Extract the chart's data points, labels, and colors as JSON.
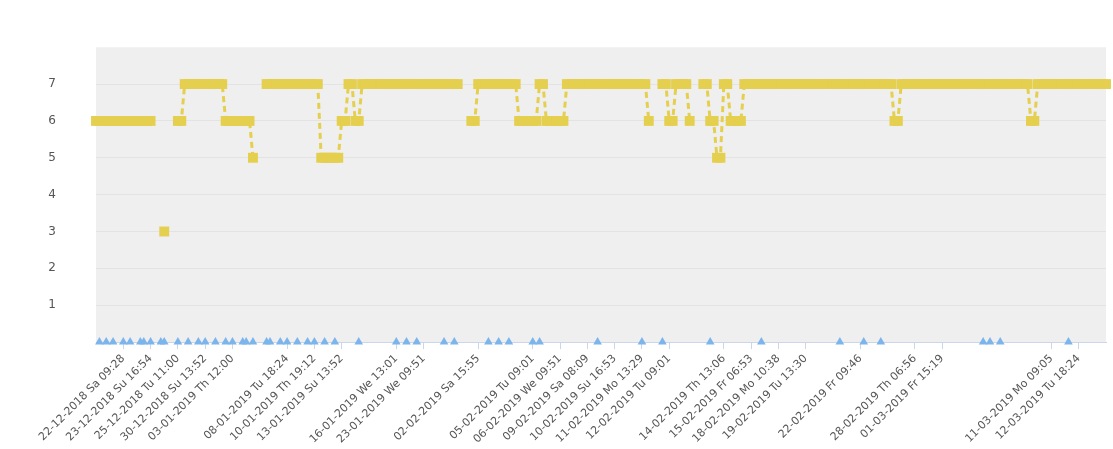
{
  "chart_data": {
    "type": "line",
    "ylim": [
      0,
      8
    ],
    "yticks": [
      1,
      2,
      3,
      4,
      5,
      6,
      7
    ],
    "grid": "y",
    "legend": false,
    "categories": [
      null,
      null,
      null,
      null,
      null,
      null,
      null,
      null,
      "22-12-2018 Sa 09:28",
      null,
      null,
      null,
      null,
      null,
      null,
      null,
      "23-12-2018 Su 16:54",
      null,
      null,
      null,
      null,
      null,
      null,
      null,
      "25-12-2018 Tu 11:00",
      null,
      null,
      null,
      null,
      null,
      null,
      null,
      "30-12-2018 Su 13:52",
      null,
      null,
      null,
      null,
      null,
      null,
      null,
      "03-01-2019 Th 12:00",
      null,
      null,
      null,
      null,
      null,
      null,
      null,
      null,
      null,
      null,
      null,
      null,
      null,
      null,
      null,
      "08-01-2019 Tu 18:24",
      null,
      null,
      null,
      null,
      null,
      null,
      null,
      "10-01-2019 Th 19:12",
      null,
      null,
      null,
      null,
      null,
      null,
      null,
      "13-01-2019 Su 13:52",
      null,
      null,
      null,
      null,
      null,
      null,
      null,
      null,
      null,
      null,
      null,
      null,
      null,
      null,
      null,
      "16-01-2019 We 13:01",
      null,
      null,
      null,
      null,
      null,
      null,
      null,
      "23-01-2019 We 09:51",
      null,
      null,
      null,
      null,
      null,
      null,
      null,
      null,
      null,
      null,
      null,
      null,
      null,
      null,
      null,
      "02-02-2019 Sa 15:55",
      null,
      null,
      null,
      null,
      null,
      null,
      null,
      null,
      null,
      null,
      null,
      null,
      null,
      null,
      null,
      "05-02-2019 Tu 09:01",
      null,
      null,
      null,
      null,
      null,
      null,
      null,
      "06-02-2019 We 09:51",
      null,
      null,
      null,
      null,
      null,
      null,
      null,
      "09-02-2019 Sa 08:09",
      null,
      null,
      null,
      null,
      null,
      null,
      null,
      "10-02-2019 Su 16:53",
      null,
      null,
      null,
      null,
      null,
      null,
      null,
      "11-02-2019 Mo 13:29",
      null,
      null,
      null,
      null,
      null,
      null,
      null,
      "12-02-2019 Tu 09:01",
      null,
      null,
      null,
      null,
      null,
      null,
      null,
      null,
      null,
      null,
      null,
      null,
      null,
      null,
      null,
      "14-02-2019 Th 13:06",
      null,
      null,
      null,
      null,
      null,
      null,
      null,
      "15-02-2019 Fr 06:53",
      null,
      null,
      null,
      null,
      null,
      null,
      null,
      "18-02-2019 Mo 10:38",
      null,
      null,
      null,
      null,
      null,
      null,
      null,
      "19-02-2019 Tu 13:30",
      null,
      null,
      null,
      null,
      null,
      null,
      null,
      null,
      null,
      null,
      null,
      null,
      null,
      null,
      null,
      "22-02-2019 Fr 09:46",
      null,
      null,
      null,
      null,
      null,
      null,
      null,
      null,
      null,
      null,
      null,
      null,
      null,
      null,
      null,
      "28-02-2019 Th 06:56",
      null,
      null,
      null,
      null,
      null,
      null,
      null,
      "01-03-2019 Fr 15:19",
      null,
      null,
      null,
      null,
      null,
      null,
      null,
      null,
      null,
      null,
      null,
      null,
      null,
      null,
      null,
      null,
      null,
      null,
      null,
      null,
      null,
      null,
      null,
      null,
      null,
      null,
      null,
      null,
      null,
      null,
      null,
      "11-03-2019 Mo 09:05",
      null,
      null,
      null,
      null,
      null,
      null,
      null,
      "12-03-2019 Tu 18:24",
      null,
      null,
      null,
      null,
      null,
      null,
      null,
      null
    ],
    "series": [
      {
        "type": "line",
        "color": "#e5cf4f",
        "marker": "square",
        "line_style": "dashed",
        "values": [
          6,
          6,
          6,
          6,
          6,
          6,
          6,
          6,
          6,
          6,
          6,
          6,
          6,
          6,
          6,
          6,
          6,
          null,
          null,
          null,
          3,
          null,
          null,
          null,
          6,
          6,
          7,
          7,
          7,
          7,
          7,
          7,
          7,
          7,
          7,
          7,
          7,
          7,
          6,
          6,
          6,
          6,
          6,
          6,
          6,
          6,
          5,
          null,
          null,
          null,
          7,
          7,
          7,
          7,
          7,
          7,
          7,
          7,
          7,
          7,
          7,
          7,
          7,
          7,
          7,
          7,
          5,
          5,
          5,
          5,
          5,
          5,
          6,
          6,
          7,
          7,
          6,
          6,
          7,
          7,
          7,
          7,
          7,
          7,
          7,
          7,
          7,
          7,
          7,
          7,
          7,
          7,
          7,
          7,
          7,
          7,
          7,
          7,
          7,
          7,
          7,
          7,
          7,
          7,
          7,
          7,
          7,
          null,
          null,
          null,
          6,
          6,
          7,
          7,
          7,
          7,
          7,
          7,
          7,
          7,
          7,
          7,
          7,
          7,
          6,
          6,
          6,
          6,
          6,
          6,
          7,
          7,
          6,
          6,
          6,
          6,
          6,
          6,
          7,
          7,
          7,
          7,
          7,
          7,
          7,
          7,
          7,
          7,
          7,
          7,
          7,
          7,
          7,
          7,
          7,
          7,
          7,
          7,
          7,
          7,
          7,
          7,
          6,
          null,
          null,
          null,
          7,
          7,
          6,
          6,
          7,
          7,
          7,
          7,
          6,
          null,
          null,
          null,
          7,
          7,
          6,
          6,
          5,
          5,
          7,
          7,
          6,
          6,
          6,
          6,
          7,
          7,
          7,
          7,
          7,
          7,
          7,
          7,
          7,
          7,
          7,
          7,
          7,
          7,
          7,
          7,
          7,
          7,
          7,
          7,
          7,
          7,
          7,
          7,
          7,
          7,
          7,
          7,
          7,
          7,
          7,
          7,
          7,
          7,
          7,
          7,
          7,
          7,
          7,
          7,
          7,
          7,
          7,
          7,
          6,
          6,
          7,
          7,
          7,
          7,
          7,
          7,
          7,
          7,
          7,
          7,
          7,
          7,
          7,
          7,
          7,
          7,
          7,
          7,
          7,
          7,
          7,
          7,
          7,
          7,
          7,
          7,
          7,
          7,
          7,
          7,
          7,
          7,
          7,
          7,
          7,
          7,
          7,
          7,
          6,
          6,
          7,
          7,
          7,
          7,
          7,
          7,
          7,
          7,
          7,
          7,
          7,
          7,
          7,
          7,
          7,
          7,
          7,
          7,
          7,
          7,
          7
        ]
      },
      {
        "type": "scatter",
        "color": "#7cb5ec",
        "marker": "triangle",
        "values": [
          null,
          0,
          null,
          0,
          null,
          0,
          null,
          null,
          0,
          null,
          0,
          null,
          null,
          0,
          0,
          null,
          0,
          null,
          null,
          0,
          0,
          null,
          null,
          null,
          0,
          null,
          null,
          0,
          null,
          null,
          0,
          null,
          0,
          null,
          null,
          0,
          null,
          null,
          0,
          null,
          0,
          null,
          null,
          0,
          0,
          null,
          0,
          null,
          null,
          null,
          0,
          0,
          null,
          null,
          0,
          null,
          0,
          null,
          null,
          0,
          null,
          null,
          0,
          null,
          0,
          null,
          null,
          0,
          null,
          null,
          0,
          null,
          null,
          null,
          null,
          null,
          null,
          0,
          null,
          null,
          null,
          null,
          null,
          null,
          null,
          null,
          null,
          null,
          0,
          null,
          null,
          0,
          null,
          null,
          0,
          null,
          null,
          null,
          null,
          null,
          null,
          null,
          0,
          null,
          null,
          0,
          null,
          null,
          null,
          null,
          null,
          null,
          null,
          null,
          null,
          0,
          null,
          null,
          0,
          null,
          null,
          0,
          null,
          null,
          null,
          null,
          null,
          null,
          0,
          null,
          0,
          null,
          null,
          null,
          null,
          null,
          null,
          null,
          null,
          null,
          null,
          null,
          null,
          null,
          null,
          null,
          null,
          0,
          null,
          null,
          null,
          null,
          null,
          null,
          null,
          null,
          null,
          null,
          null,
          null,
          0,
          null,
          null,
          null,
          null,
          null,
          0,
          null,
          null,
          null,
          null,
          null,
          null,
          null,
          null,
          null,
          null,
          null,
          null,
          null,
          0,
          null,
          null,
          null,
          null,
          null,
          null,
          null,
          null,
          null,
          null,
          null,
          null,
          null,
          null,
          0,
          null,
          null,
          null,
          null,
          null,
          null,
          null,
          null,
          null,
          null,
          null,
          null,
          null,
          null,
          null,
          null,
          null,
          null,
          null,
          null,
          null,
          null,
          0,
          null,
          null,
          null,
          null,
          null,
          null,
          0,
          null,
          null,
          null,
          null,
          0,
          null,
          null,
          null,
          null,
          null,
          null,
          null,
          null,
          null,
          null,
          null,
          null,
          null,
          null,
          null,
          null,
          null,
          null,
          null,
          null,
          null,
          null,
          null,
          null,
          null,
          null,
          null,
          null,
          null,
          0,
          null,
          0,
          null,
          null,
          0,
          null,
          null,
          null,
          null,
          null,
          null,
          null,
          null,
          null,
          null,
          null,
          null,
          null,
          null,
          null,
          null,
          null,
          null,
          null,
          0,
          null,
          null,
          null,
          null,
          null,
          null,
          null,
          null,
          null,
          null,
          null
        ]
      }
    ]
  }
}
